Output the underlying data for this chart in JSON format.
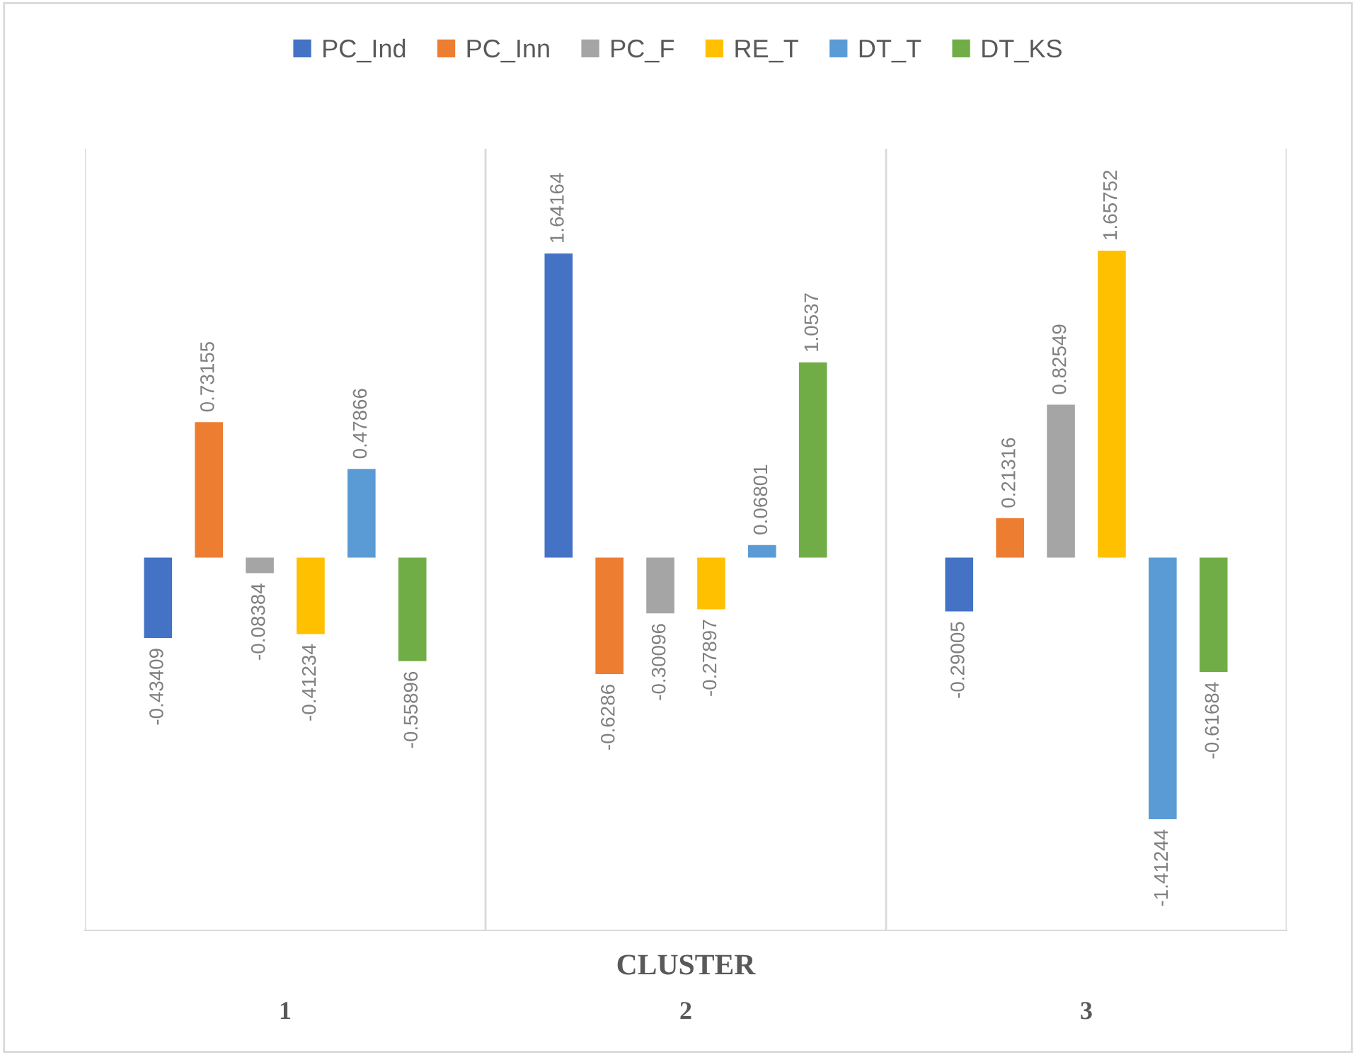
{
  "chart_data": {
    "type": "bar",
    "xlabel": "CLUSTER",
    "categories": [
      "1",
      "2",
      "3"
    ],
    "series": [
      {
        "name": "PC_Ind",
        "color": "#4472c4",
        "values": [
          -0.43409,
          1.64164,
          -0.29005
        ]
      },
      {
        "name": "PC_Inn",
        "color": "#ed7d31",
        "values": [
          0.73155,
          -0.6286,
          0.21316
        ]
      },
      {
        "name": "PC_F",
        "color": "#a5a5a5",
        "values": [
          -0.08384,
          -0.30096,
          0.82549
        ]
      },
      {
        "name": "RE_T",
        "color": "#ffc000",
        "values": [
          -0.41234,
          -0.27897,
          1.65752
        ]
      },
      {
        "name": "DT_T",
        "color": "#5b9bd5",
        "values": [
          0.47866,
          0.06801,
          -1.41244
        ]
      },
      {
        "name": "DT_KS",
        "color": "#70ad47",
        "values": [
          -0.55896,
          1.0537,
          -0.61684
        ]
      }
    ],
    "data_labels": true,
    "grid": "x",
    "legend": "top",
    "tick_labels": "x"
  }
}
